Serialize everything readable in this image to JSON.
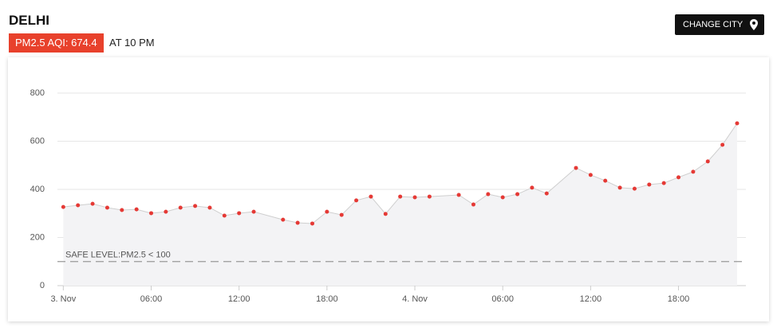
{
  "header": {
    "title": "DELHI",
    "badge": "PM2.5 AQI: 674.4",
    "time": "AT 10 PM",
    "button": "CHANGE CITY"
  },
  "chart_data": {
    "type": "line",
    "x": [
      0,
      1,
      2,
      3,
      4,
      5,
      6,
      7,
      8,
      9,
      10,
      11,
      12,
      13,
      15,
      16,
      17,
      18,
      19,
      20,
      21,
      22,
      23,
      24,
      25,
      27,
      28,
      29,
      30,
      31,
      32,
      33,
      35,
      36,
      37,
      38,
      39,
      40,
      41,
      42,
      43,
      44,
      45,
      46
    ],
    "series": [
      {
        "name": "PM2.5",
        "color": "#e53935",
        "values": [
          327,
          334,
          340,
          324,
          314,
          317,
          301,
          307,
          324,
          331,
          324,
          291,
          301,
          307,
          274,
          261,
          258,
          307,
          294,
          354,
          370,
          298,
          370,
          367,
          370,
          377,
          337,
          380,
          367,
          380,
          407,
          383,
          489,
          460,
          436,
          407,
          403,
          420,
          426,
          450,
          473,
          516,
          585,
          674.4
        ]
      }
    ],
    "xlim": [
      -0.4,
      46.6
    ],
    "xticks": [
      {
        "value": 0,
        "label": "3. Nov"
      },
      {
        "value": 6,
        "label": "06:00"
      },
      {
        "value": 12,
        "label": "12:00"
      },
      {
        "value": 18,
        "label": "18:00"
      },
      {
        "value": 24,
        "label": "4. Nov"
      },
      {
        "value": 30,
        "label": "06:00"
      },
      {
        "value": 36,
        "label": "12:00"
      },
      {
        "value": 42,
        "label": "18:00"
      }
    ],
    "ylim": [
      0,
      800
    ],
    "yticks": [
      0,
      200,
      400,
      600,
      800
    ],
    "grid": true,
    "safe_level": {
      "value": 100,
      "label": "SAFE LEVEL:PM2.5 < 100"
    }
  }
}
